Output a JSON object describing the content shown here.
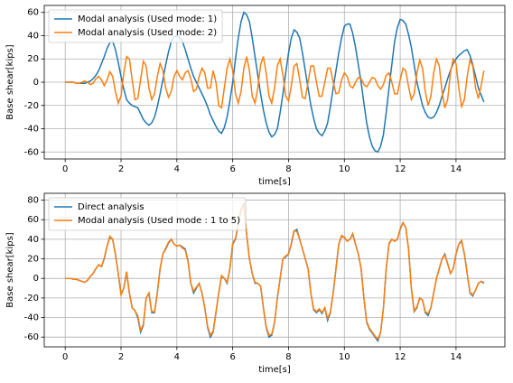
{
  "chart_data": [
    {
      "type": "line",
      "xlabel": "time[s]",
      "ylabel": "Base shear[kips]",
      "xlim": [
        -0.75,
        15.75
      ],
      "xticks": [
        0,
        2,
        4,
        6,
        8,
        10,
        12,
        14
      ],
      "ylim": [
        -66,
        66
      ],
      "yticks": [
        -60,
        -40,
        -20,
        0,
        20,
        40,
        60
      ],
      "grid": true,
      "legend": "upper left",
      "x": [
        0,
        0.1,
        0.2,
        0.3,
        0.4,
        0.5,
        0.6,
        0.7,
        0.8,
        0.9,
        1,
        1.1,
        1.2,
        1.3,
        1.4,
        1.5,
        1.6,
        1.7,
        1.8,
        1.9,
        2,
        2.1,
        2.2,
        2.3,
        2.4,
        2.5,
        2.6,
        2.7,
        2.8,
        2.9,
        3,
        3.1,
        3.2,
        3.3,
        3.4,
        3.5,
        3.6,
        3.7,
        3.8,
        3.9,
        4,
        4.1,
        4.2,
        4.3,
        4.4,
        4.5,
        4.6,
        4.7,
        4.8,
        4.9,
        5,
        5.1,
        5.2,
        5.3,
        5.4,
        5.5,
        5.6,
        5.7,
        5.8,
        5.9,
        6,
        6.1,
        6.2,
        6.3,
        6.4,
        6.5,
        6.6,
        6.7,
        6.8,
        6.9,
        7,
        7.1,
        7.2,
        7.3,
        7.4,
        7.5,
        7.6,
        7.7,
        7.8,
        7.9,
        8,
        8.1,
        8.2,
        8.3,
        8.4,
        8.5,
        8.6,
        8.7,
        8.8,
        8.9,
        9,
        9.1,
        9.2,
        9.3,
        9.4,
        9.5,
        9.6,
        9.7,
        9.8,
        9.9,
        10,
        10.1,
        10.2,
        10.3,
        10.4,
        10.5,
        10.6,
        10.7,
        10.8,
        10.9,
        11,
        11.1,
        11.2,
        11.3,
        11.4,
        11.5,
        11.6,
        11.7,
        11.8,
        11.9,
        12,
        12.1,
        12.2,
        12.3,
        12.4,
        12.5,
        12.6,
        12.7,
        12.8,
        12.9,
        13,
        13.1,
        13.2,
        13.3,
        13.4,
        13.5,
        13.6,
        13.7,
        13.8,
        13.9,
        14,
        14.1,
        14.2,
        14.3,
        14.4,
        14.5,
        14.6,
        14.7,
        14.8,
        14.9,
        15
      ],
      "series": [
        {
          "name": "Modal analysis (Used mode: 1)",
          "color": "#1f77b4",
          "values": [
            0,
            0,
            0,
            0,
            -1,
            -1,
            -1,
            -1,
            0,
            1,
            3,
            6,
            10,
            16,
            22,
            29,
            34,
            35,
            28,
            17,
            5,
            -6,
            -15,
            -18,
            -20,
            -21,
            -22,
            -27,
            -32,
            -35,
            -37,
            -35,
            -30,
            -21,
            -10,
            2,
            15,
            26,
            35,
            39,
            40,
            38,
            35,
            28,
            20,
            12,
            5,
            0,
            -5,
            -10,
            -15,
            -21,
            -28,
            -33,
            -38,
            -42,
            -44,
            -39,
            -30,
            -16,
            0,
            20,
            38,
            52,
            60,
            58,
            52,
            38,
            22,
            6,
            -10,
            -24,
            -35,
            -43,
            -47,
            -45,
            -40,
            -26,
            -10,
            8,
            25,
            38,
            45,
            43,
            38,
            25,
            10,
            -5,
            -20,
            -31,
            -40,
            -44,
            -46,
            -42,
            -35,
            -21,
            -5,
            10,
            25,
            38,
            48,
            50,
            50,
            42,
            30,
            15,
            0,
            -18,
            -35,
            -47,
            -55,
            -59,
            -60,
            -55,
            -45,
            -26,
            -5,
            15,
            35,
            47,
            54,
            53,
            50,
            41,
            30,
            15,
            0,
            -10,
            -20,
            -26,
            -30,
            -31,
            -30,
            -26,
            -20,
            -12,
            -5,
            3,
            10,
            16,
            20,
            23,
            25,
            27,
            28,
            23,
            15,
            5,
            -5,
            -11,
            -17
          ]
        },
        {
          "name": "Modal analysis (Used mode: 2)",
          "color": "#ff7f0e",
          "values": [
            0,
            0,
            0,
            0,
            -1,
            -1,
            0,
            1,
            0,
            -2,
            -1,
            3,
            5,
            2,
            -3,
            2,
            9,
            5,
            -8,
            -18,
            -12,
            8,
            22,
            20,
            2,
            -15,
            -14,
            2,
            18,
            14,
            -5,
            -15,
            -10,
            5,
            16,
            10,
            -5,
            -13,
            -8,
            5,
            10,
            5,
            2,
            8,
            10,
            3,
            -8,
            -6,
            5,
            12,
            8,
            -5,
            -5,
            10,
            0,
            -20,
            -22,
            -5,
            12,
            20,
            10,
            -10,
            -18,
            -8,
            12,
            22,
            10,
            -12,
            -18,
            -5,
            15,
            22,
            8,
            -12,
            -18,
            -5,
            14,
            20,
            6,
            -12,
            -16,
            -3,
            14,
            16,
            2,
            -13,
            -14,
            0,
            14,
            14,
            0,
            -12,
            -12,
            0,
            12,
            12,
            0,
            -10,
            -9,
            2,
            8,
            5,
            -3,
            -5,
            0,
            4,
            3,
            -2,
            -4,
            0,
            4,
            3,
            -3,
            -6,
            -2,
            6,
            8,
            0,
            -10,
            -10,
            2,
            12,
            10,
            -4,
            -15,
            -10,
            8,
            19,
            12,
            -8,
            -20,
            -12,
            8,
            20,
            14,
            -8,
            -22,
            -15,
            8,
            20,
            16,
            -5,
            -21,
            -15,
            5,
            19,
            14,
            -5,
            -14,
            -3,
            10
          ]
        }
      ]
    },
    {
      "type": "line",
      "xlabel": "time[s]",
      "ylabel": "Base shear[kips]",
      "xlim": [
        -0.75,
        15.75
      ],
      "xticks": [
        0,
        2,
        4,
        6,
        8,
        10,
        12,
        14
      ],
      "ylim": [
        -70,
        87
      ],
      "yticks": [
        -60,
        -40,
        -20,
        0,
        20,
        40,
        60,
        80
      ],
      "grid": true,
      "legend": "upper left",
      "x": [
        0,
        0.1,
        0.2,
        0.3,
        0.4,
        0.5,
        0.6,
        0.7,
        0.8,
        0.9,
        1,
        1.1,
        1.2,
        1.3,
        1.4,
        1.5,
        1.6,
        1.7,
        1.8,
        1.9,
        2,
        2.1,
        2.2,
        2.3,
        2.4,
        2.5,
        2.6,
        2.7,
        2.8,
        2.9,
        3,
        3.1,
        3.2,
        3.3,
        3.4,
        3.5,
        3.6,
        3.7,
        3.8,
        3.9,
        4,
        4.1,
        4.2,
        4.3,
        4.4,
        4.5,
        4.6,
        4.7,
        4.8,
        4.9,
        5,
        5.1,
        5.2,
        5.3,
        5.4,
        5.5,
        5.6,
        5.7,
        5.8,
        5.9,
        6,
        6.1,
        6.2,
        6.3,
        6.4,
        6.5,
        6.6,
        6.7,
        6.8,
        6.9,
        7,
        7.1,
        7.2,
        7.3,
        7.4,
        7.5,
        7.6,
        7.7,
        7.8,
        7.9,
        8,
        8.1,
        8.2,
        8.3,
        8.4,
        8.5,
        8.6,
        8.7,
        8.8,
        8.9,
        9,
        9.1,
        9.2,
        9.3,
        9.4,
        9.5,
        9.6,
        9.7,
        9.8,
        9.9,
        10,
        10.1,
        10.2,
        10.3,
        10.4,
        10.5,
        10.6,
        10.7,
        10.8,
        10.9,
        11,
        11.1,
        11.2,
        11.3,
        11.4,
        11.5,
        11.6,
        11.7,
        11.8,
        11.9,
        12,
        12.1,
        12.2,
        12.3,
        12.4,
        12.5,
        12.6,
        12.7,
        12.8,
        12.9,
        13,
        13.1,
        13.2,
        13.3,
        13.4,
        13.5,
        13.6,
        13.7,
        13.8,
        13.9,
        14,
        14.1,
        14.2,
        14.3,
        14.4,
        14.5,
        14.6,
        14.7,
        14.8,
        14.9,
        15
      ],
      "series": [
        {
          "name": "Direct analysis",
          "color": "#1f77b4",
          "values": [
            0,
            0,
            0,
            -1,
            -1,
            -2,
            -3,
            -4,
            -2,
            2,
            5,
            10,
            14,
            12,
            20,
            33,
            42,
            40,
            25,
            5,
            -16,
            -10,
            6,
            -15,
            -30,
            -33,
            -40,
            -55,
            -48,
            -20,
            -15,
            -35,
            -35,
            -15,
            10,
            25,
            30,
            36,
            40,
            35,
            33,
            34,
            32,
            30,
            18,
            -5,
            -15,
            -10,
            -5,
            -15,
            -30,
            -50,
            -60,
            -55,
            -35,
            -15,
            2,
            0,
            -5,
            10,
            35,
            40,
            55,
            70,
            76,
            45,
            20,
            5,
            -5,
            -5,
            -8,
            -30,
            -50,
            -60,
            -58,
            -45,
            -20,
            0,
            20,
            22,
            25,
            35,
            48,
            50,
            40,
            30,
            20,
            10,
            -15,
            -32,
            -35,
            -32,
            -36,
            -30,
            -43,
            -35,
            -15,
            10,
            35,
            43,
            42,
            38,
            40,
            45,
            35,
            25,
            10,
            -20,
            -45,
            -52,
            -56,
            -60,
            -64,
            -55,
            -30,
            10,
            35,
            40,
            38,
            40,
            50,
            57,
            52,
            30,
            -10,
            -34,
            -30,
            -20,
            -22,
            -35,
            -38,
            -30,
            -15,
            0,
            10,
            20,
            25,
            15,
            5,
            10,
            25,
            35,
            38,
            25,
            5,
            -15,
            -18,
            -12,
            -5,
            -3,
            -5
          ]
        },
        {
          "name": "Modal analysis (Used mode : 1 to 5)",
          "color": "#ff7f0e",
          "values": [
            0,
            0,
            0,
            -1,
            -1,
            -2,
            -3,
            -4,
            -2,
            2,
            5,
            10,
            14,
            12,
            21,
            33,
            43,
            40,
            24,
            5,
            -17,
            -10,
            7,
            -15,
            -30,
            -33,
            -38,
            -53,
            -47,
            -20,
            -15,
            -34,
            -34,
            -15,
            10,
            25,
            31,
            37,
            40,
            35,
            33,
            34,
            31,
            29,
            17,
            -5,
            -13,
            -9,
            -5,
            -15,
            -30,
            -49,
            -58,
            -54,
            -35,
            -15,
            3,
            0,
            -4,
            10,
            36,
            41,
            56,
            71,
            74,
            45,
            20,
            5,
            -4,
            -5,
            -8,
            -30,
            -49,
            -58,
            -57,
            -45,
            -20,
            0,
            20,
            23,
            25,
            36,
            49,
            48,
            40,
            30,
            20,
            10,
            -15,
            -31,
            -34,
            -31,
            -35,
            -30,
            -41,
            -34,
            -15,
            10,
            35,
            44,
            42,
            38,
            40,
            46,
            35,
            25,
            10,
            -20,
            -44,
            -51,
            -55,
            -59,
            -62,
            -55,
            -30,
            10,
            36,
            40,
            38,
            40,
            51,
            57,
            52,
            30,
            -10,
            -33,
            -29,
            -20,
            -22,
            -34,
            -36,
            -30,
            -15,
            0,
            10,
            20,
            24,
            15,
            5,
            10,
            25,
            35,
            39,
            25,
            5,
            -14,
            -17,
            -12,
            -5,
            -3,
            -4
          ]
        }
      ]
    }
  ]
}
